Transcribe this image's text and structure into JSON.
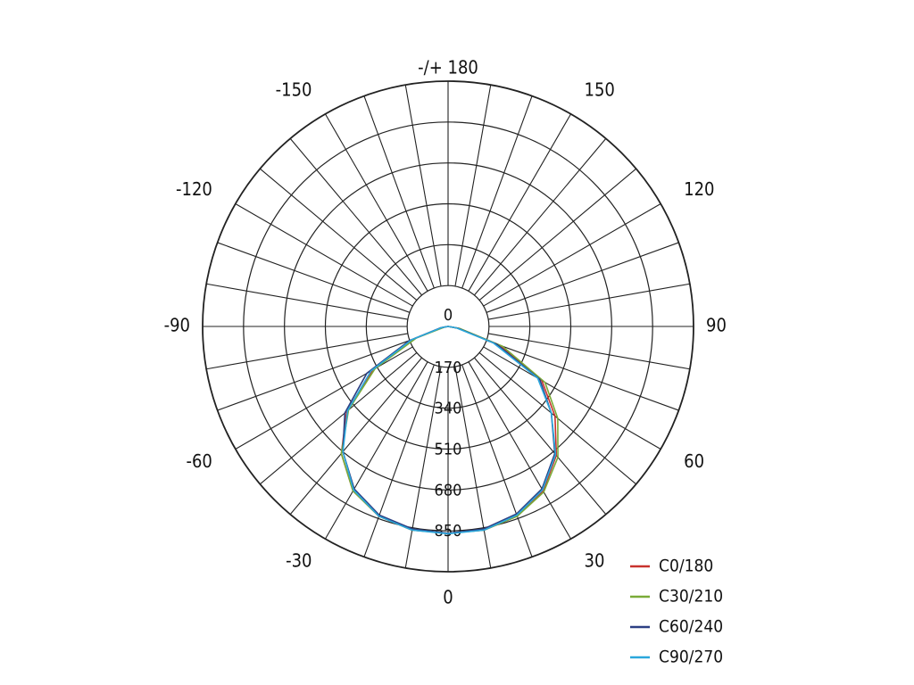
{
  "chart_data": {
    "type": "polar",
    "angle_labels": [
      {
        "deg": 180,
        "text": "-/+ 180"
      },
      {
        "deg": 150,
        "text": "150"
      },
      {
        "deg": -150,
        "text": "-150"
      },
      {
        "deg": 120,
        "text": "120"
      },
      {
        "deg": -120,
        "text": "-120"
      },
      {
        "deg": 90,
        "text": "90"
      },
      {
        "deg": -90,
        "text": "-90"
      },
      {
        "deg": 60,
        "text": "60"
      },
      {
        "deg": -60,
        "text": "-60"
      },
      {
        "deg": 30,
        "text": "30"
      },
      {
        "deg": -30,
        "text": "-30"
      },
      {
        "deg": 0,
        "text": "0"
      }
    ],
    "radial_ticks": [
      "0",
      "170",
      "340",
      "510",
      "680",
      "850"
    ],
    "r_max": 1020,
    "angle_step_deg": 10,
    "series": [
      {
        "name": "C0/180",
        "color": "#c8322d",
        "angles": [
          -90,
          -80,
          -70,
          -60,
          -50,
          -40,
          -30,
          -20,
          -10,
          0,
          10,
          20,
          30,
          40,
          50,
          60,
          70,
          80,
          90
        ],
        "values": [
          0,
          20,
          150,
          360,
          550,
          690,
          790,
          840,
          860,
          860,
          860,
          840,
          790,
          700,
          580,
          450,
          230,
          45,
          0
        ]
      },
      {
        "name": "C30/210",
        "color": "#7aab38",
        "angles": [
          -90,
          -80,
          -70,
          -60,
          -50,
          -40,
          -30,
          -20,
          -10,
          0,
          10,
          20,
          30,
          40,
          50,
          60,
          70,
          80,
          90
        ],
        "values": [
          0,
          15,
          140,
          350,
          540,
          690,
          790,
          840,
          860,
          860,
          860,
          840,
          795,
          710,
          595,
          465,
          240,
          50,
          0
        ]
      },
      {
        "name": "C60/240",
        "color": "#2c3f83",
        "angles": [
          -90,
          -80,
          -70,
          -60,
          -50,
          -40,
          -30,
          -20,
          -10,
          0,
          10,
          20,
          30,
          40,
          50,
          60,
          70,
          80,
          90
        ],
        "values": [
          0,
          30,
          170,
          390,
          560,
          680,
          780,
          835,
          855,
          860,
          855,
          830,
          780,
          690,
          560,
          440,
          215,
          40,
          0
        ]
      },
      {
        "name": "C90/270",
        "color": "#2aa7dc",
        "angles": [
          -90,
          -80,
          -70,
          -60,
          -50,
          -40,
          -30,
          -20,
          -10,
          0,
          10,
          20,
          30,
          40,
          50,
          60,
          70,
          80,
          90
        ],
        "values": [
          0,
          25,
          160,
          370,
          545,
          680,
          785,
          840,
          860,
          862,
          860,
          835,
          785,
          695,
          560,
          430,
          200,
          35,
          0
        ]
      }
    ]
  }
}
